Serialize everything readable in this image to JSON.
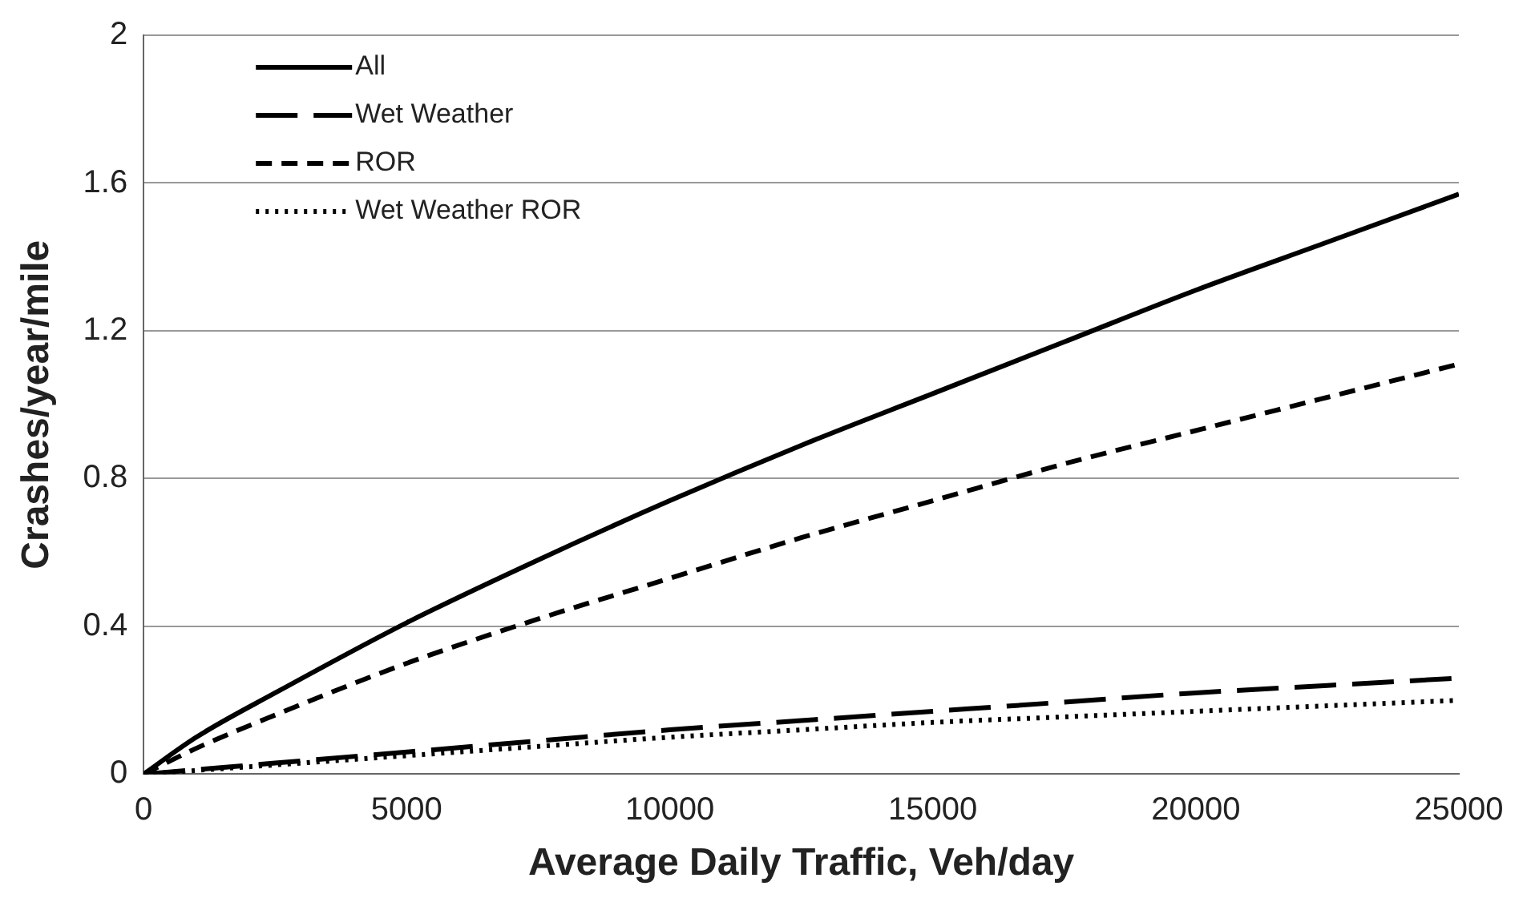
{
  "chart_data": {
    "type": "line",
    "xlabel": "Average Daily Traffic, Veh/day",
    "ylabel": "Crashes/year/mile",
    "xlim": [
      0,
      25000
    ],
    "xticks": [
      0,
      5000,
      10000,
      15000,
      20000,
      25000
    ],
    "ylim": [
      0,
      2
    ],
    "yticks": [
      0,
      0.4,
      0.8,
      1.2,
      1.6,
      2
    ],
    "grid": "y",
    "legend": "top left",
    "marker": "none",
    "series": [
      {
        "name": "All",
        "color": "#000000",
        "line_style": "solid",
        "x": [
          0,
          1000,
          2500,
          5000,
          7500,
          10000,
          12500,
          15000,
          17500,
          20000,
          22500,
          25000
        ],
        "values": [
          0,
          0.1,
          0.22,
          0.41,
          0.58,
          0.74,
          0.89,
          1.03,
          1.17,
          1.31,
          1.44,
          1.57
        ]
      },
      {
        "name": "Wet Weather",
        "color": "#000000",
        "line_style": "longdash",
        "x": [
          0,
          2500,
          5000,
          7500,
          10000,
          12500,
          15000,
          17500,
          20000,
          22500,
          25000
        ],
        "values": [
          0,
          0.03,
          0.06,
          0.09,
          0.12,
          0.145,
          0.17,
          0.195,
          0.22,
          0.24,
          0.26
        ]
      },
      {
        "name": "ROR",
        "color": "#000000",
        "line_style": "dashed",
        "x": [
          0,
          1000,
          2500,
          5000,
          7500,
          10000,
          12500,
          15000,
          17500,
          20000,
          22500,
          25000
        ],
        "values": [
          0,
          0.07,
          0.16,
          0.3,
          0.42,
          0.53,
          0.64,
          0.74,
          0.84,
          0.93,
          1.02,
          1.11
        ]
      },
      {
        "name": "Wet Weather ROR",
        "color": "#000000",
        "line_style": "dotted",
        "x": [
          0,
          2500,
          5000,
          7500,
          10000,
          12500,
          15000,
          17500,
          20000,
          22500,
          25000
        ],
        "values": [
          0,
          0.025,
          0.05,
          0.075,
          0.1,
          0.12,
          0.14,
          0.155,
          0.17,
          0.185,
          0.2
        ]
      }
    ]
  }
}
